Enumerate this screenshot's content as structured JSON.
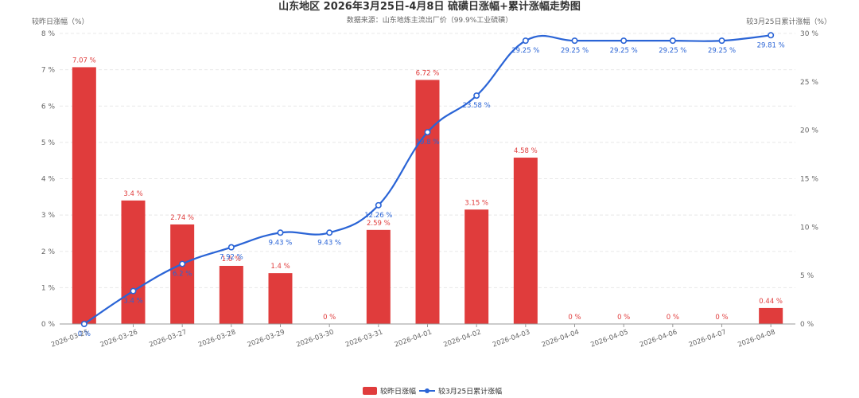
{
  "chart_data": {
    "type": "bar",
    "title": "山东地区 2026年3月25日-4月8日 硫磺日涨幅+累计涨幅走势图",
    "subtitle": "数据来源：山东地炼主流出厂价（99.9%工业硫磺）",
    "y_left_label": "较昨日涨幅（%）",
    "y_right_label": "较3月25日累计涨幅（%）",
    "y_left_range": [
      0,
      8
    ],
    "y_left_ticks": [
      "0 %",
      "1 %",
      "2 %",
      "3 %",
      "4 %",
      "5 %",
      "6 %",
      "7 %",
      "8 %"
    ],
    "y_right_range": [
      0,
      30
    ],
    "y_right_ticks": [
      "0 %",
      "5 %",
      "10 %",
      "15 %",
      "20 %",
      "25 %",
      "30 %"
    ],
    "grid": true,
    "legend_position": "bottom-center",
    "categories": [
      "2026-03-25",
      "2026-03-26",
      "2026-03-27",
      "2026-03-28",
      "2026-03-29",
      "2026-03-30",
      "2026-03-31",
      "2026-04-01",
      "2026-04-02",
      "2026-04-03",
      "2026-04-04",
      "2026-04-05",
      "2026-04-06",
      "2026-04-07",
      "2026-04-08"
    ],
    "series": [
      {
        "name": "较昨日涨幅",
        "type": "bar",
        "axis": "left",
        "color": "#e03c3c",
        "values": [
          7.07,
          3.4,
          2.74,
          1.6,
          1.4,
          0,
          2.59,
          6.72,
          3.15,
          4.58,
          0,
          0,
          0,
          0,
          0.44
        ],
        "labels": [
          "7.07 %",
          "3.4 %",
          "2.74 %",
          "1.6 %",
          "1.4 %",
          "0 %",
          "2.59 %",
          "6.72 %",
          "3.15 %",
          "4.58 %",
          "0 %",
          "0 %",
          "0 %",
          "0 %",
          "0.44 %"
        ]
      },
      {
        "name": "较3月25日累计涨幅",
        "type": "line",
        "axis": "right",
        "color": "#2a64d6",
        "values": [
          0,
          3.4,
          6.2,
          7.92,
          9.43,
          9.43,
          12.26,
          19.8,
          23.58,
          29.25,
          29.25,
          29.25,
          29.25,
          29.25,
          29.81
        ],
        "labels": [
          "0 %",
          "3.4 %",
          "6.2 %",
          "7.92 %",
          "9.43 %",
          "9.43 %",
          "12.26 %",
          "19.8 %",
          "23.58 %",
          "29.25 %",
          "29.25 %",
          "29.25 %",
          "29.25 %",
          "29.25 %",
          "29.81 %"
        ]
      }
    ]
  }
}
